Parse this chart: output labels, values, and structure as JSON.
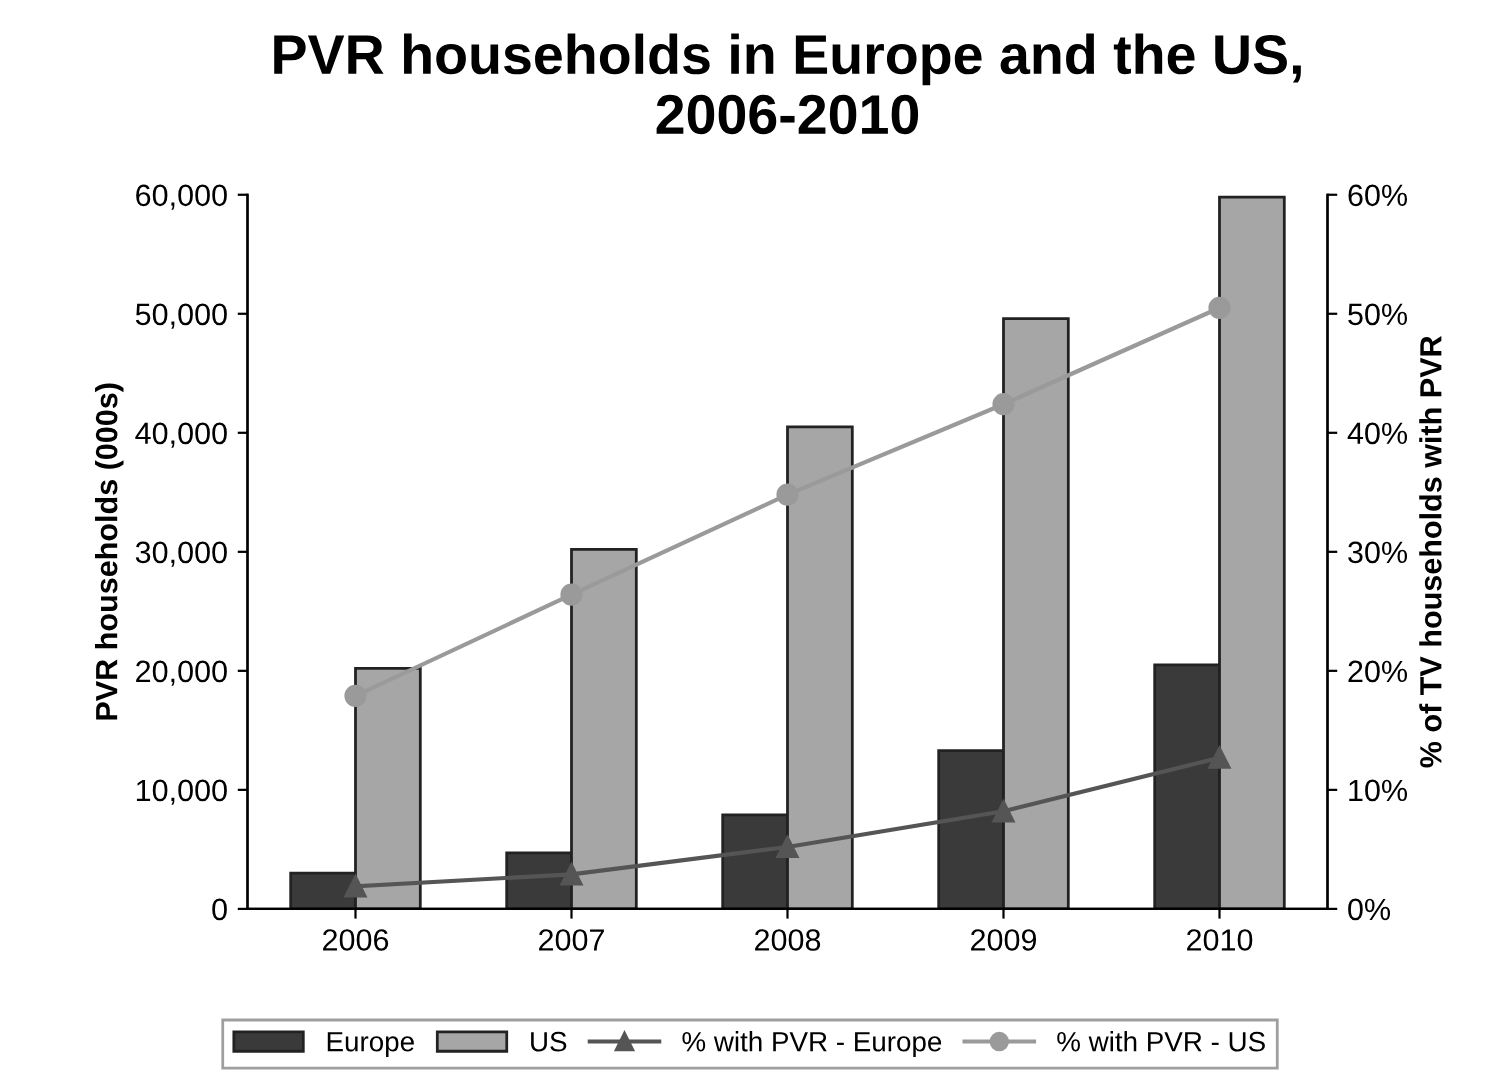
{
  "chart_data": {
    "type": "bar",
    "title": "PVR households in Europe and the US,\n2006-2010",
    "categories": [
      "2006",
      "2007",
      "2008",
      "2009",
      "2010"
    ],
    "ylabel": "PVR households (000s)",
    "y2label": "% of TV households with PVR",
    "ylim": [
      0,
      60000
    ],
    "yticks": [
      {
        "value": 0,
        "label": "0"
      },
      {
        "value": 10000,
        "label": "10,000"
      },
      {
        "value": 20000,
        "label": "20,000"
      },
      {
        "value": 30000,
        "label": "30,000"
      },
      {
        "value": 40000,
        "label": "40,000"
      },
      {
        "value": 50000,
        "label": "50,000"
      },
      {
        "value": 60000,
        "label": "60,000"
      }
    ],
    "y2lim": [
      0,
      60
    ],
    "y2ticks": [
      {
        "value": 0,
        "label": "0%"
      },
      {
        "value": 10,
        "label": "10%"
      },
      {
        "value": 20,
        "label": "20%"
      },
      {
        "value": 30,
        "label": "30%"
      },
      {
        "value": 40,
        "label": "40%"
      },
      {
        "value": 50,
        "label": "50%"
      },
      {
        "value": 60,
        "label": "60%"
      }
    ],
    "legend": "bottom",
    "grid": false,
    "series": [
      {
        "name": "Europe",
        "color": "#3a3a3a",
        "values": [
          3000,
          4700,
          7900,
          13300,
          20500
        ]
      },
      {
        "name": "US",
        "color": "#a6a6a6",
        "values": [
          20200,
          30200,
          40500,
          49600,
          59800
        ]
      },
      {
        "name": "% with PVR - Europe",
        "type": "line",
        "axis": "y2",
        "marker": "triangle",
        "color": "#555555",
        "values": [
          1.9,
          2.9,
          5.2,
          8.2,
          12.7
        ]
      },
      {
        "name": "% with PVR - US",
        "type": "line",
        "axis": "y2",
        "marker": "circle",
        "color": "#9a9a9a",
        "values": [
          17.9,
          26.4,
          34.8,
          42.4,
          50.5
        ]
      }
    ]
  }
}
